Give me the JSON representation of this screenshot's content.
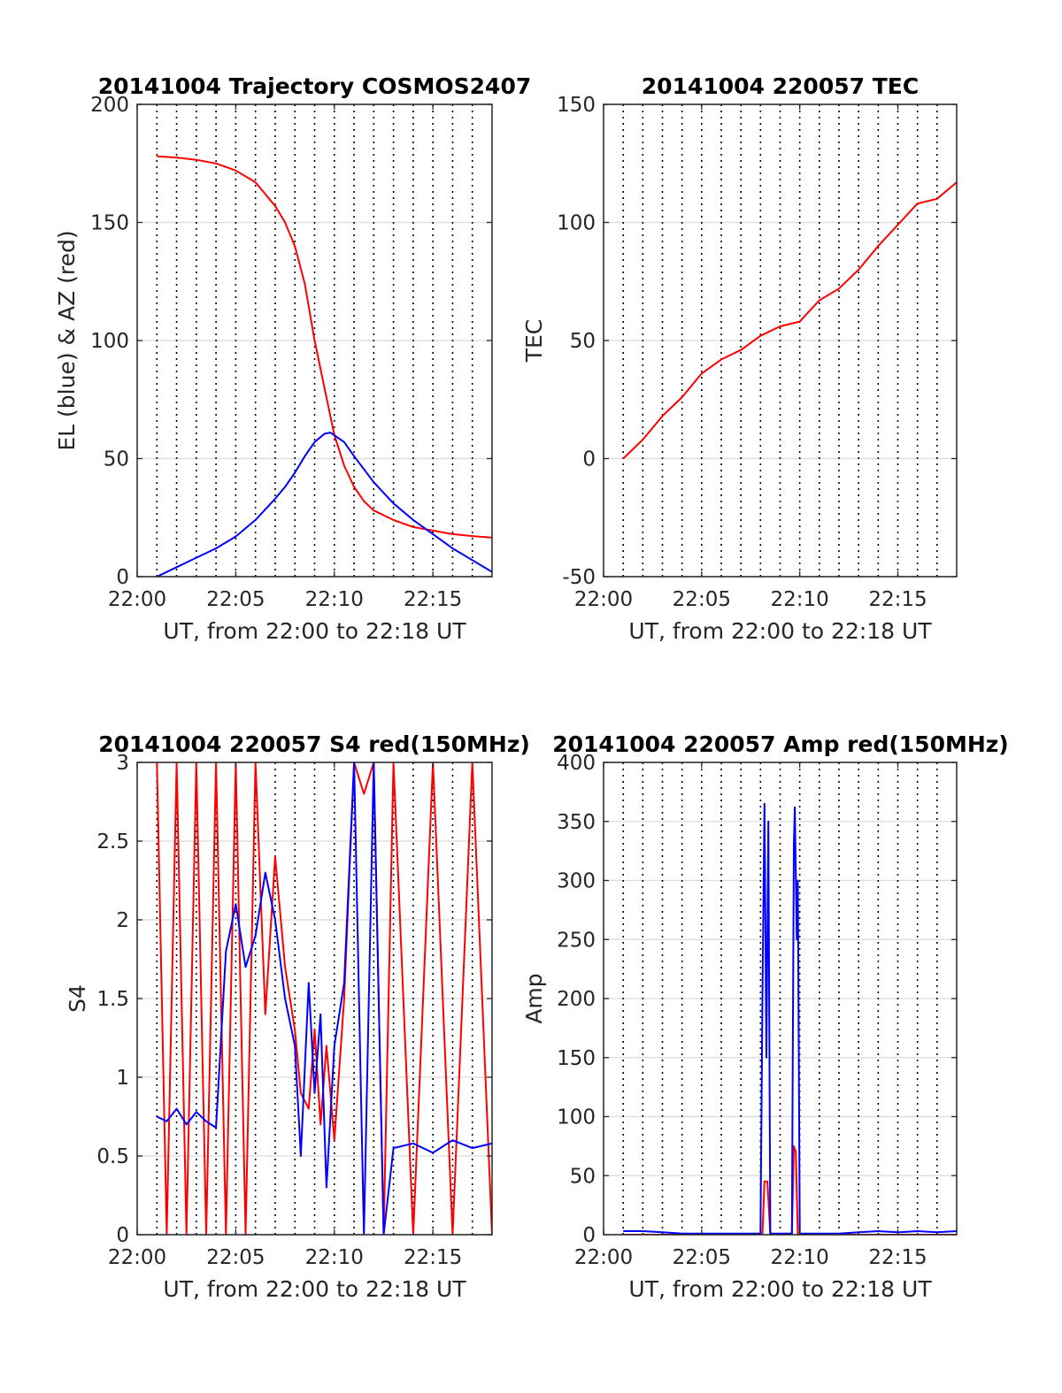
{
  "colors": {
    "red": "#ff0000",
    "blue": "#0000ff"
  },
  "chart_data": [
    {
      "type": "line",
      "title": "20141004 Trajectory COSMOS2407",
      "xlabel": "UT, from 22:00 to 22:18 UT",
      "ylabel": "EL (blue) & AZ (red)",
      "xlim": [
        0,
        18
      ],
      "ylim": [
        0,
        200
      ],
      "xticks": [
        0,
        5,
        10,
        15
      ],
      "xtick_labels": [
        "22:00",
        "22:05",
        "22:10",
        "22:15"
      ],
      "yticks": [
        0,
        50,
        100,
        150,
        200
      ],
      "ytick_labels": [
        "0",
        "50",
        "100",
        "150",
        "200"
      ],
      "series": [
        {
          "color": "red",
          "x": [
            1,
            2,
            3,
            4,
            5,
            6,
            7,
            7.5,
            8,
            8.5,
            9,
            9.5,
            10,
            10.5,
            11,
            11.5,
            12,
            13,
            14,
            15,
            16,
            17,
            18
          ],
          "y": [
            178,
            177.5,
            176.5,
            175,
            172,
            167,
            157,
            150,
            140,
            124,
            100,
            80,
            60,
            47,
            38,
            32,
            28,
            24,
            21,
            19.5,
            18,
            17.2,
            16.5
          ]
        },
        {
          "color": "blue",
          "x": [
            1,
            2,
            3,
            4,
            5,
            6,
            7,
            7.5,
            8,
            8.5,
            9,
            9.5,
            9.8,
            10.5,
            11,
            12,
            13,
            14,
            15,
            16,
            17,
            18
          ],
          "y": [
            0,
            4,
            8,
            12,
            17,
            24,
            33,
            38,
            44,
            51,
            57,
            60.5,
            61,
            57,
            51,
            40,
            31,
            24,
            18,
            12,
            7,
            2
          ]
        }
      ]
    },
    {
      "type": "line",
      "title": "20141004 220057 TEC",
      "xlabel": "UT, from 22:00 to 22:18 UT",
      "ylabel": "TEC",
      "xlim": [
        0,
        18
      ],
      "ylim": [
        -50,
        150
      ],
      "xticks": [
        0,
        5,
        10,
        15
      ],
      "xtick_labels": [
        "22:00",
        "22:05",
        "22:10",
        "22:15"
      ],
      "yticks": [
        -50,
        0,
        50,
        100,
        150
      ],
      "ytick_labels": [
        "-50",
        "0",
        "50",
        "100",
        "150"
      ],
      "series": [
        {
          "color": "red",
          "x": [
            1,
            2,
            3,
            4,
            5,
            6,
            7,
            8,
            9,
            10,
            11,
            12,
            13,
            14,
            15,
            16,
            17,
            18
          ],
          "y": [
            0,
            8,
            18,
            26,
            36,
            42,
            46,
            52,
            56,
            58,
            67,
            72,
            80,
            90,
            99,
            108,
            110,
            117
          ]
        }
      ]
    },
    {
      "type": "line",
      "title": "20141004 220057 S4 red(150MHz)",
      "xlabel": "UT, from 22:00 to 22:18 UT",
      "ylabel": "S4",
      "xlim": [
        0,
        18
      ],
      "ylim": [
        0,
        3
      ],
      "xticks": [
        0,
        5,
        10,
        15
      ],
      "xtick_labels": [
        "22:00",
        "22:05",
        "22:10",
        "22:15"
      ],
      "yticks": [
        0,
        0.5,
        1,
        1.5,
        2,
        2.5,
        3
      ],
      "ytick_labels": [
        "0",
        "0.5",
        "1",
        "1.5",
        "2",
        "2.5",
        "3"
      ],
      "series": [
        {
          "color": "red",
          "x": [
            1,
            1.5,
            2,
            2.5,
            3,
            3.5,
            4,
            4.5,
            5,
            5.5,
            6,
            6.5,
            7,
            7.5,
            8,
            8.3,
            8.7,
            9,
            9.3,
            9.6,
            10,
            10.5,
            11,
            11.5,
            12,
            12.5,
            13,
            14,
            15,
            16,
            17,
            18
          ],
          "y": [
            3,
            0,
            3,
            0,
            3,
            0,
            3,
            0,
            3,
            0,
            3,
            1.4,
            2.4,
            1.7,
            1.3,
            0.9,
            0.8,
            1.3,
            0.7,
            1.2,
            0.6,
            1.5,
            3,
            2.8,
            3,
            0,
            3,
            0,
            3,
            0,
            3,
            0
          ]
        },
        {
          "color": "blue",
          "x": [
            1,
            1.5,
            2,
            2.5,
            3,
            3.5,
            4,
            4.5,
            5,
            5.5,
            6,
            6.5,
            7,
            7.5,
            8,
            8.3,
            8.7,
            9,
            9.3,
            9.6,
            10,
            10.5,
            11,
            11.5,
            12,
            12.5,
            13,
            14,
            15,
            16,
            17,
            18
          ],
          "y": [
            0.75,
            0.72,
            0.8,
            0.7,
            0.78,
            0.72,
            0.68,
            1.8,
            2.1,
            1.7,
            1.9,
            2.3,
            2.0,
            1.5,
            1.2,
            0.5,
            1.6,
            0.9,
            1.4,
            0.3,
            1.2,
            1.6,
            3,
            0,
            3,
            0,
            0.55,
            0.58,
            0.52,
            0.6,
            0.55,
            0.58
          ]
        }
      ]
    },
    {
      "type": "line",
      "title": "20141004 220057 Amp red(150MHz)",
      "xlabel": "UT, from 22:00 to 22:18 UT",
      "ylabel": "Amp",
      "xlim": [
        0,
        18
      ],
      "ylim": [
        0,
        400
      ],
      "xticks": [
        0,
        5,
        10,
        15
      ],
      "xtick_labels": [
        "22:00",
        "22:05",
        "22:10",
        "22:15"
      ],
      "yticks": [
        0,
        50,
        100,
        150,
        200,
        250,
        300,
        350,
        400
      ],
      "ytick_labels": [
        "0",
        "50",
        "100",
        "150",
        "200",
        "250",
        "300",
        "350",
        "400"
      ],
      "series": [
        {
          "color": "red",
          "x": [
            1,
            8.1,
            8.2,
            8.35,
            8.5,
            8.6,
            9.6,
            9.7,
            9.8,
            9.9,
            10,
            18
          ],
          "y": [
            0,
            0,
            45,
            45,
            0,
            0,
            0,
            75,
            70,
            0,
            0,
            0
          ]
        },
        {
          "color": "blue",
          "x": [
            1,
            2,
            3,
            4,
            5,
            6,
            7,
            8,
            8.1,
            8.2,
            8.3,
            8.4,
            8.5,
            8.6,
            9.6,
            9.7,
            9.75,
            9.85,
            9.9,
            10,
            11,
            12,
            13,
            14,
            15,
            16,
            17,
            18
          ],
          "y": [
            3,
            3,
            2,
            1,
            1,
            1,
            1,
            1,
            200,
            365,
            150,
            350,
            1,
            1,
            1,
            330,
            362,
            250,
            300,
            1,
            1,
            1,
            2,
            3,
            2,
            3,
            2,
            3
          ]
        }
      ]
    }
  ]
}
